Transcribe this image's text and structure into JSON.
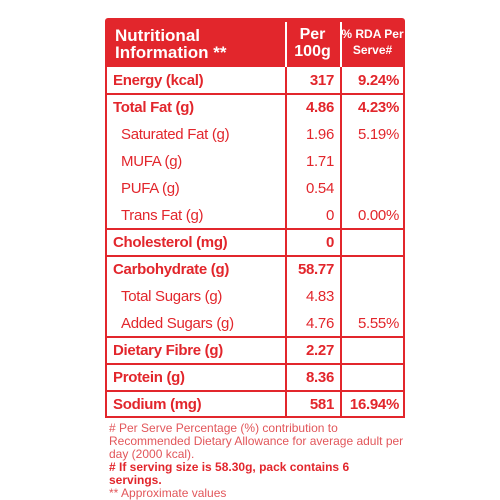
{
  "header": {
    "nutrient": [
      "Nutritional",
      "Information **"
    ],
    "per_100g": [
      "Per",
      "100g"
    ],
    "rda": [
      "% RDA Per",
      "Serve#"
    ]
  },
  "rows": [
    {
      "name": "Energy (kcal)",
      "per_100g": "317",
      "rda": "9.24%",
      "bold": true
    },
    {
      "name": "Total Fat (g)",
      "per_100g": "4.86",
      "rda": "4.23%",
      "bold": true
    },
    {
      "name": "Saturated Fat (g)",
      "per_100g": "1.96",
      "rda": "5.19%",
      "sub": true
    },
    {
      "name": "MUFA (g)",
      "per_100g": "1.71",
      "sub": true
    },
    {
      "name": "PUFA (g)",
      "per_100g": "0.54",
      "sub": true
    },
    {
      "name": "Trans Fat (g)",
      "per_100g": "0",
      "rda": "0.00%",
      "sub": true
    },
    {
      "name": "Cholesterol (mg)",
      "per_100g": "0",
      "bold": true
    },
    {
      "name": "Carbohydrate (g)",
      "per_100g": "58.77",
      "bold": true
    },
    {
      "name": "Total Sugars (g)",
      "per_100g": "4.83",
      "sub": true
    },
    {
      "name": "Added Sugars (g)",
      "per_100g": "4.76",
      "rda": "5.55%",
      "sub": true
    },
    {
      "name": "Dietary Fibre (g)",
      "per_100g": "2.27",
      "bold": true
    },
    {
      "name": "Protein (g)",
      "per_100g": "8.36",
      "bold": true
    },
    {
      "name": "Sodium (mg)",
      "per_100g": "581",
      "rda": "16.94%",
      "bold": true
    }
  ],
  "footnotes": [
    {
      "text": "# Per Serve Percentage (%) contribution to Recommended Dietary Allowance for average adult per day (2000 kcal)."
    },
    {
      "text": "# If serving size is 58.30g, pack contains 6 servings.",
      "bold": true
    },
    {
      "text": "** Approximate values"
    }
  ]
}
